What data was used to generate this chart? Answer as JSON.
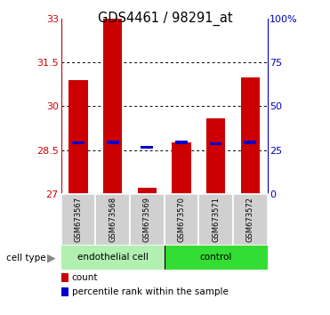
{
  "title": "GDS4461 / 98291_at",
  "samples": [
    "GSM673567",
    "GSM673568",
    "GSM673569",
    "GSM673570",
    "GSM673571",
    "GSM673572"
  ],
  "count_values": [
    30.9,
    33.0,
    27.22,
    28.75,
    29.6,
    31.0
  ],
  "percentile_values": [
    28.75,
    28.76,
    28.6,
    28.76,
    28.72,
    28.76
  ],
  "ylim": [
    27.0,
    33.0
  ],
  "yticks": [
    27,
    28.5,
    30,
    31.5,
    33
  ],
  "ytick_labels": [
    "27",
    "28.5",
    "30",
    "31.5",
    "33"
  ],
  "right_ytick_pcts": [
    0,
    25,
    50,
    75,
    100
  ],
  "right_ytick_labels": [
    "0",
    "25",
    "50",
    "75",
    "100%"
  ],
  "bar_color": "#cc0000",
  "percentile_color": "#0000cc",
  "endothelial_color": "#b2f0b2",
  "control_color": "#33dd33",
  "left_axis_color": "#cc0000",
  "right_axis_color": "#0000bb",
  "bar_width": 0.55,
  "legend_count_label": "count",
  "legend_percentile_label": "percentile rank within the sample",
  "endothelial_group": [
    0,
    1,
    2
  ],
  "control_group": [
    3,
    4,
    5
  ]
}
